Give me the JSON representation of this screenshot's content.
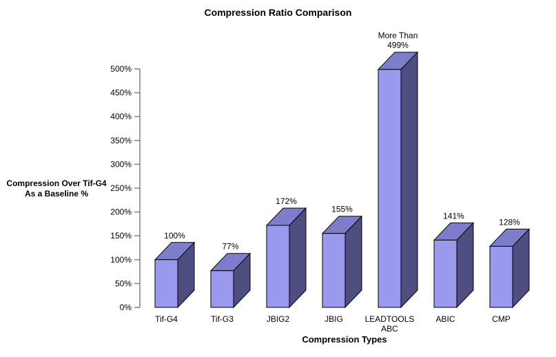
{
  "chart_data": {
    "type": "bar",
    "style": "3d-block",
    "title": "Compression Ratio Comparison",
    "xlabel": "Compression Types",
    "ylabel": "Compression Over Tif-G4\nAs a Baseline %",
    "categories": [
      "Tif-G4",
      "Tif-G3",
      "JBIG2",
      "JBIG",
      "LEADTOOLS\nABC",
      "ABIC",
      "CMP"
    ],
    "values": [
      100,
      77,
      172,
      155,
      499,
      141,
      128
    ],
    "bar_labels": [
      "100%",
      "77%",
      "172%",
      "155%",
      "More Than\n499%",
      "141%",
      "128%"
    ],
    "ylim": [
      0,
      500
    ],
    "ytick_step": 50,
    "ytick_labels": [
      "0%",
      "50%",
      "100%",
      "150%",
      "200%",
      "250%",
      "300%",
      "350%",
      "400%",
      "450%",
      "500%"
    ],
    "grid": false,
    "legend": "none",
    "colors": {
      "bar_front": "#9999EE",
      "bar_top": "#7D7DCC",
      "bar_side": "#4E4E80",
      "outline": "#000000",
      "axis": "#808080",
      "text": "#000000",
      "background": "#FFFFFF"
    }
  }
}
